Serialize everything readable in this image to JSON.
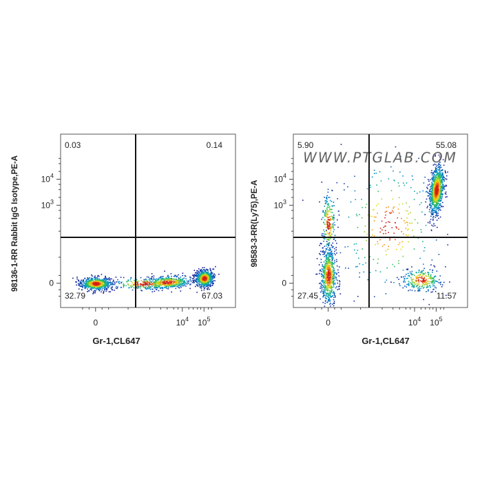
{
  "chart_data": [
    {
      "type": "scatter",
      "subtype": "flow-cytometry-pseudocolor",
      "x_axis": {
        "label": "Gr-1,CL647",
        "scale": "biexponential",
        "ticks": [
          {
            "label": "0",
            "value": 0
          },
          {
            "label": "10",
            "exp": "4",
            "value": 10000
          },
          {
            "label": "10",
            "exp": "5",
            "value": 100000
          }
        ]
      },
      "y_axis": {
        "label": "98136-1-RR Rabbit IgG Isotype,PE-A",
        "scale": "biexponential",
        "ticks": [
          {
            "label": "0",
            "value": 0
          },
          {
            "label": "10",
            "exp": "3",
            "value": 1000
          },
          {
            "label": "10",
            "exp": "4",
            "value": 10000
          }
        ]
      },
      "quadrants": {
        "upper_left": "0.03",
        "upper_right": "0.14",
        "lower_left": "32.79",
        "lower_right": "67.03"
      },
      "populations": [
        {
          "name": "negative",
          "x_center_log": 0.0,
          "y_center_log": 0.0,
          "relative_size": "large"
        },
        {
          "name": "Gr-1 positive",
          "x_center_log": 5.0,
          "y_center_log": 0.2,
          "relative_size": "large"
        }
      ]
    },
    {
      "type": "scatter",
      "subtype": "flow-cytometry-pseudocolor",
      "watermark": "WWW.PTGLAB.COM",
      "x_axis": {
        "label": "Gr-1,CL647",
        "scale": "biexponential",
        "ticks": [
          {
            "label": "0",
            "value": 0
          },
          {
            "label": "10",
            "exp": "4",
            "value": 10000
          },
          {
            "label": "10",
            "exp": "5",
            "value": 100000
          }
        ]
      },
      "y_axis": {
        "label": "98583-3-RR(Ly75),PE-A",
        "scale": "biexponential",
        "ticks": [
          {
            "label": "0",
            "value": 0
          },
          {
            "label": "10",
            "exp": "3",
            "value": 1000
          },
          {
            "label": "10",
            "exp": "4",
            "value": 10000
          }
        ]
      },
      "quadrants": {
        "upper_left": "5.90",
        "upper_right": "55.08",
        "lower_left": "27.45",
        "lower_right": "11.57"
      },
      "populations": [
        {
          "name": "Gr-1 neg / Ly75 neg",
          "x_center_log": 0.0,
          "y_center_log": 0.3,
          "relative_size": "medium"
        },
        {
          "name": "Gr-1 pos / Ly75 pos",
          "x_center_log": 5.0,
          "y_center_log": 3.6,
          "relative_size": "large"
        },
        {
          "name": "Gr-1 mid / Ly75 neg",
          "x_center_log": 4.3,
          "y_center_log": 0.2,
          "relative_size": "small"
        }
      ]
    }
  ]
}
